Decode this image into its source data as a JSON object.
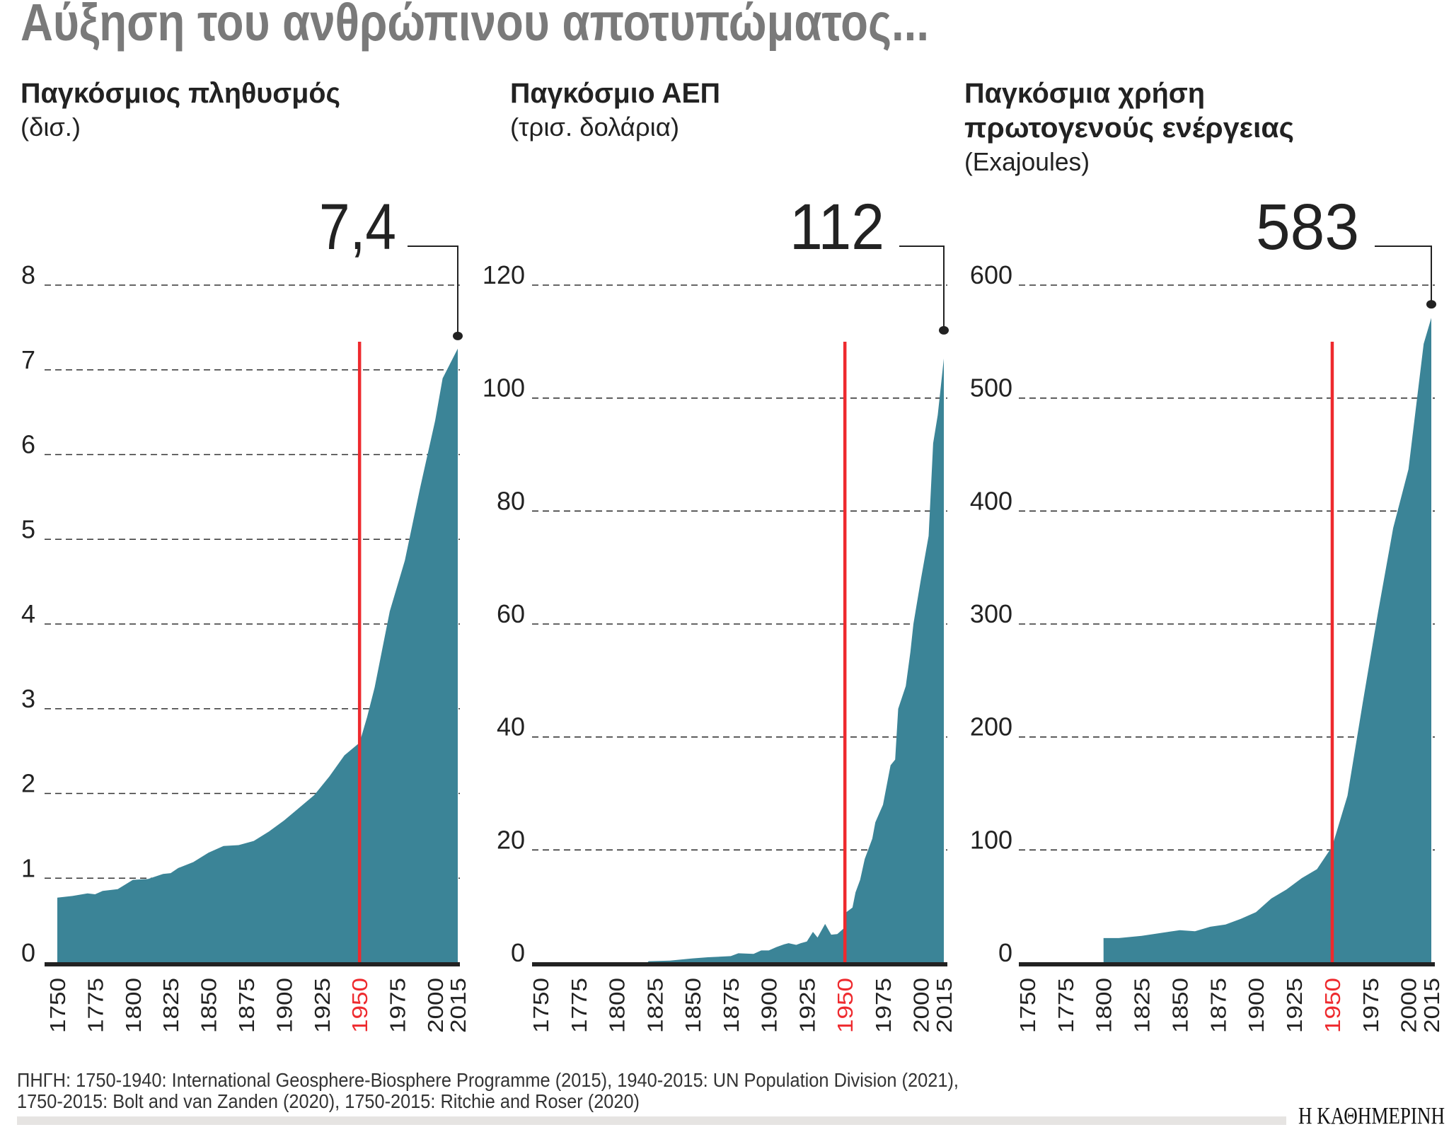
{
  "title": "Αύξηση του ανθρώπινου αποτυπώματος...",
  "colors": {
    "area": "#3b8497",
    "highlight_line": "#ee2a2e",
    "title": "#7a7a7a",
    "text": "#222222",
    "grid": "#333333"
  },
  "footer": {
    "source_line1": "ΠΗΓΗ: 1750-1940: International Geosphere-Biosphere Programme (2015), 1940-2015: UN Population Division (2021),",
    "source_line2": "1750-2015: Bolt and van Zanden (2020), 1750-2015: Ritchie and Roser (2020)",
    "logo": "Η ΚΑΘΗΜΕΡΙΝΗ"
  },
  "chart_data": [
    {
      "type": "area",
      "title_lines": [
        "Παγκόσμιος πληθυσμός"
      ],
      "unit": "(δισ.)",
      "callout": "7,4",
      "highlight_year": "1950",
      "x_ticks": [
        "1750",
        "1775",
        "1800",
        "1825",
        "1850",
        "1875",
        "1900",
        "1925",
        "1950",
        "1975",
        "2000",
        "2015"
      ],
      "y_ticks": [
        "0",
        "1",
        "2",
        "3",
        "4",
        "5",
        "6",
        "7",
        "8"
      ],
      "ylim": [
        0,
        8
      ],
      "xlim": [
        1750,
        2015
      ],
      "grid": "dashed horizontal",
      "points": [
        [
          1750,
          0.77
        ],
        [
          1760,
          0.79
        ],
        [
          1770,
          0.82
        ],
        [
          1775,
          0.81
        ],
        [
          1780,
          0.85
        ],
        [
          1790,
          0.87
        ],
        [
          1800,
          0.98
        ],
        [
          1810,
          0.99
        ],
        [
          1820,
          1.05
        ],
        [
          1825,
          1.06
        ],
        [
          1830,
          1.12
        ],
        [
          1840,
          1.19
        ],
        [
          1850,
          1.3
        ],
        [
          1860,
          1.38
        ],
        [
          1870,
          1.39
        ],
        [
          1880,
          1.44
        ],
        [
          1890,
          1.55
        ],
        [
          1900,
          1.68
        ],
        [
          1910,
          1.83
        ],
        [
          1920,
          1.98
        ],
        [
          1930,
          2.2
        ],
        [
          1940,
          2.45
        ],
        [
          1950,
          2.6
        ],
        [
          1955,
          2.9
        ],
        [
          1960,
          3.25
        ],
        [
          1965,
          3.7
        ],
        [
          1970,
          4.15
        ],
        [
          1980,
          4.75
        ],
        [
          1990,
          5.6
        ],
        [
          2000,
          6.4
        ],
        [
          2005,
          6.9
        ],
        [
          2015,
          7.25
        ]
      ],
      "marker_value": 7.4
    },
    {
      "type": "area",
      "title_lines": [
        "Παγκόσμιο ΑΕΠ"
      ],
      "unit": "(τρισ. δολάρια)",
      "callout": "112",
      "highlight_year": "1950",
      "x_ticks": [
        "1750",
        "1775",
        "1800",
        "1825",
        "1850",
        "1875",
        "1900",
        "1925",
        "1950",
        "1975",
        "2000",
        "2015"
      ],
      "y_ticks": [
        "0",
        "20",
        "40",
        "60",
        "80",
        "100",
        "120"
      ],
      "ylim": [
        0,
        120
      ],
      "xlim": [
        1750,
        2015
      ],
      "grid": "dashed horizontal",
      "points": [
        [
          1820,
          0
        ],
        [
          1821,
          0.3
        ],
        [
          1835,
          0.4
        ],
        [
          1850,
          0.8
        ],
        [
          1860,
          1.0
        ],
        [
          1875,
          1.2
        ],
        [
          1880,
          1.7
        ],
        [
          1890,
          1.6
        ],
        [
          1895,
          2.2
        ],
        [
          1900,
          2.2
        ],
        [
          1905,
          2.8
        ],
        [
          1910,
          3.3
        ],
        [
          1913,
          3.5
        ],
        [
          1918,
          3.2
        ],
        [
          1921,
          3.5
        ],
        [
          1925,
          3.8
        ],
        [
          1929,
          5.5
        ],
        [
          1932,
          4.5
        ],
        [
          1937,
          6.9
        ],
        [
          1941,
          5.0
        ],
        [
          1945,
          5.1
        ],
        [
          1950,
          6.3
        ],
        [
          1951,
          9.0
        ],
        [
          1955,
          9.8
        ],
        [
          1957,
          12.5
        ],
        [
          1960,
          14.7
        ],
        [
          1963,
          18.4
        ],
        [
          1968,
          22
        ],
        [
          1970,
          24.9
        ],
        [
          1975,
          28
        ],
        [
          1980,
          35
        ],
        [
          1983,
          36
        ],
        [
          1985,
          45
        ],
        [
          1990,
          49
        ],
        [
          1993,
          55
        ],
        [
          1995,
          60
        ],
        [
          2000,
          68
        ],
        [
          2005,
          75.6
        ],
        [
          2008,
          92
        ],
        [
          2011,
          97
        ],
        [
          2015,
          107
        ]
      ],
      "marker_value": 112
    },
    {
      "type": "area",
      "title_lines": [
        "Παγκόσμια χρήση",
        "πρωτογενούς ενέργειας"
      ],
      "unit": "(Exajoules)",
      "callout": "583",
      "highlight_year": "1950",
      "x_ticks": [
        "1750",
        "1775",
        "1800",
        "1825",
        "1850",
        "1875",
        "1900",
        "1925",
        "1950",
        "1975",
        "2000",
        "2015"
      ],
      "y_ticks": [
        "0",
        "100",
        "200",
        "300",
        "400",
        "500",
        "600"
      ],
      "ylim": [
        0,
        600
      ],
      "xlim": [
        1750,
        2015
      ],
      "grid": "dashed horizontal",
      "points": [
        [
          1800,
          22
        ],
        [
          1810,
          22
        ],
        [
          1825,
          24
        ],
        [
          1850,
          29
        ],
        [
          1860,
          28
        ],
        [
          1870,
          32
        ],
        [
          1880,
          34
        ],
        [
          1890,
          39
        ],
        [
          1900,
          45
        ],
        [
          1910,
          57
        ],
        [
          1920,
          65
        ],
        [
          1930,
          75
        ],
        [
          1940,
          83
        ],
        [
          1950,
          103
        ],
        [
          1960,
          148
        ],
        [
          1970,
          230
        ],
        [
          1980,
          310
        ],
        [
          1990,
          385
        ],
        [
          2000,
          437
        ],
        [
          2010,
          548
        ],
        [
          2015,
          571
        ]
      ],
      "marker_value": 583
    }
  ]
}
